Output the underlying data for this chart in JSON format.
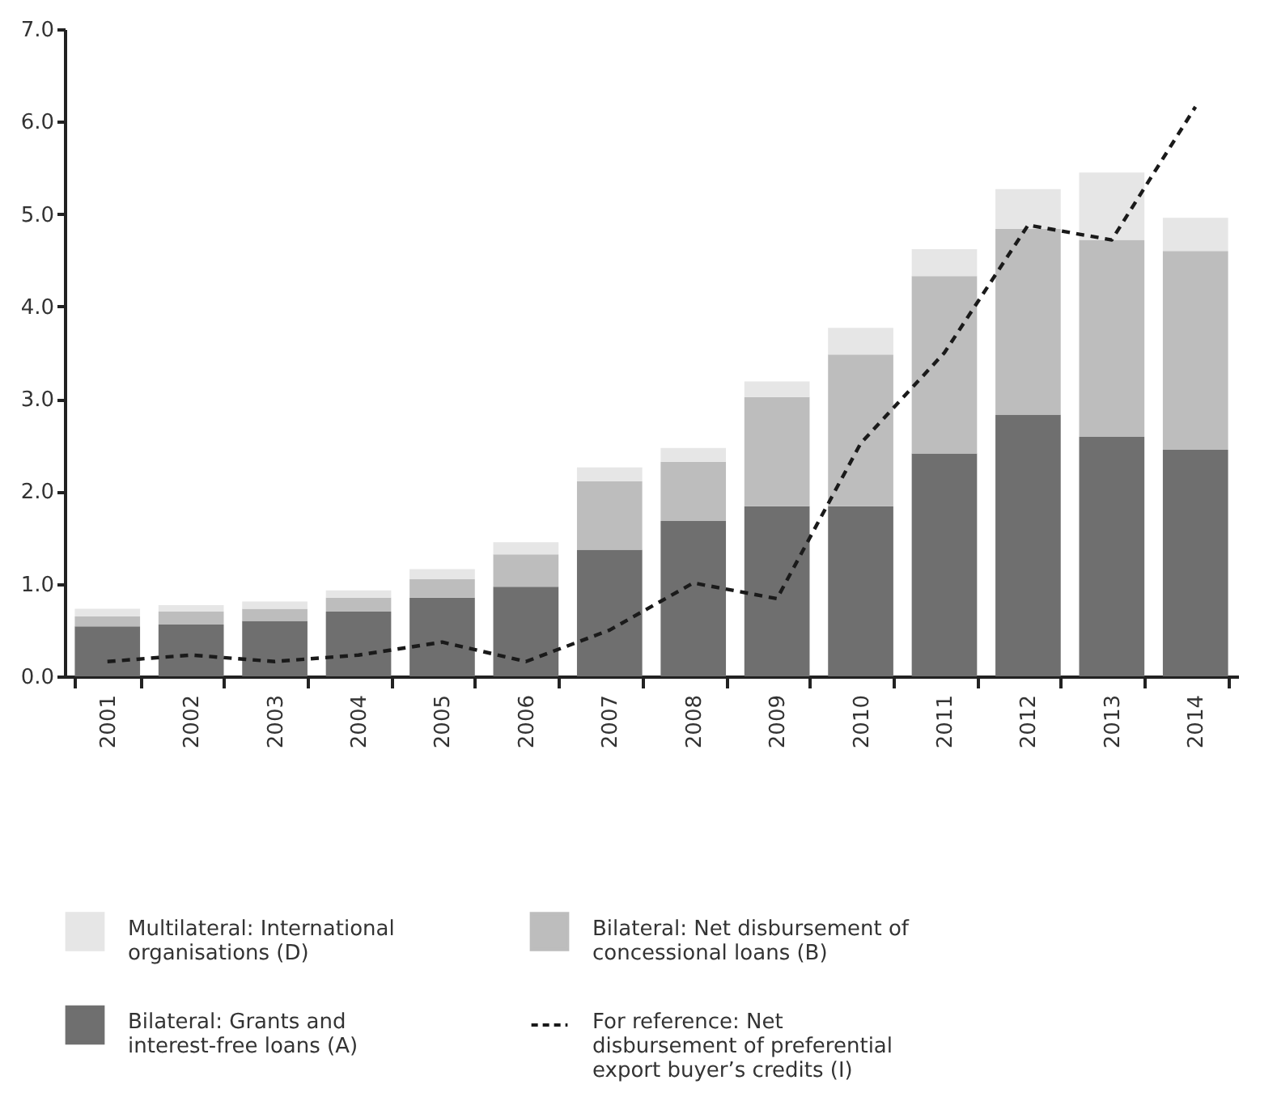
{
  "chart_data": {
    "type": "bar",
    "stacked": true,
    "categories": [
      "2001",
      "2002",
      "2003",
      "2004",
      "2005",
      "2006",
      "2007",
      "2008",
      "2009",
      "2010",
      "2011",
      "2012",
      "2013",
      "2014"
    ],
    "series": [
      {
        "name": "Bilateral: Grants and interest-free loans (A)",
        "color": "#6f6f6f",
        "values": [
          0.54,
          0.56,
          0.6,
          0.7,
          0.85,
          0.97,
          1.37,
          1.68,
          1.84,
          1.84,
          2.41,
          2.83,
          2.59,
          2.45
        ]
      },
      {
        "name": "Bilateral: Net disbursement of concessional loans (B)",
        "color": "#bdbdbd",
        "values": [
          0.11,
          0.14,
          0.13,
          0.15,
          0.2,
          0.35,
          0.74,
          0.64,
          1.18,
          1.64,
          1.92,
          2.01,
          2.13,
          2.15
        ]
      },
      {
        "name": "Multilateral: International organisations (D)",
        "color": "#e6e6e6",
        "values": [
          0.08,
          0.07,
          0.08,
          0.08,
          0.11,
          0.13,
          0.15,
          0.15,
          0.17,
          0.29,
          0.29,
          0.43,
          0.73,
          0.36
        ]
      },
      {
        "name": "For reference: Net disbursement of preferential export buyer’s credits (I)",
        "type": "line",
        "line_style": "dashed",
        "color": "#1a1a1a",
        "values": [
          0.16,
          0.23,
          0.16,
          0.23,
          0.37,
          0.16,
          0.5,
          1.01,
          0.84,
          2.52,
          3.5,
          4.88,
          4.72,
          6.16
        ]
      }
    ],
    "ylim": [
      0,
      7
    ],
    "yticks": [
      {
        "value": 0,
        "label": "0.0"
      },
      {
        "value": 1,
        "label": "1.0"
      },
      {
        "value": 2,
        "label": "2.0"
      },
      {
        "value": 3,
        "label": "3.0"
      },
      {
        "value": 4,
        "label": "4.0"
      },
      {
        "value": 5,
        "label": "5.0"
      },
      {
        "value": 6,
        "label": "6.0"
      },
      {
        "value": 7,
        "label": "7.0"
      }
    ],
    "grid": false,
    "legend": "bottom"
  }
}
